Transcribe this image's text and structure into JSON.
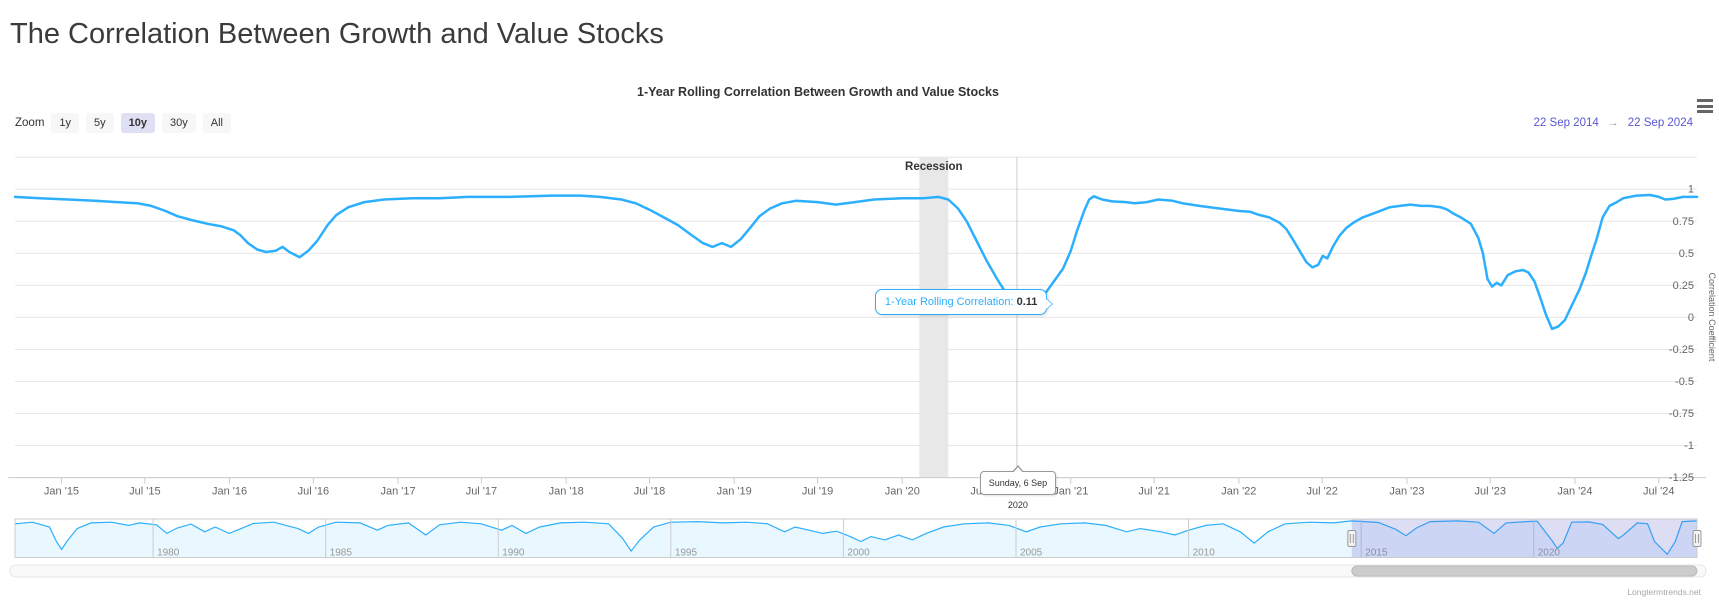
{
  "page": {
    "title": "The Correlation Between Growth and Value Stocks",
    "watermark": "Longtermtrends.net"
  },
  "chart": {
    "title": "1-Year Rolling Correlation Between Growth and Value Stocks",
    "range_selector": {
      "zoom_label": "Zoom",
      "buttons": [
        "1y",
        "5y",
        "10y",
        "30y",
        "All"
      ],
      "selected": "10y",
      "from": "22 Sep 2014",
      "arrow": "→",
      "to": "22 Sep 2024"
    },
    "y_axis": {
      "title": "Correlation Coefficient",
      "ticks": [
        "1",
        "0.75",
        "0.5",
        "0.25",
        "0",
        "-0.25",
        "-0.5",
        "-0.75",
        "-1",
        "-1.25"
      ],
      "tick_values": [
        1,
        0.75,
        0.5,
        0.25,
        0,
        -0.25,
        -0.5,
        -0.75,
        -1,
        -1.25
      ]
    },
    "x_axis": {
      "ticks": [
        {
          "label": "Jan '15",
          "date": "2015-01-01"
        },
        {
          "label": "Jul '15",
          "date": "2015-07-01"
        },
        {
          "label": "Jan '16",
          "date": "2016-01-01"
        },
        {
          "label": "Jul '16",
          "date": "2016-07-01"
        },
        {
          "label": "Jan '17",
          "date": "2017-01-01"
        },
        {
          "label": "Jul '17",
          "date": "2017-07-01"
        },
        {
          "label": "Jan '18",
          "date": "2018-01-01"
        },
        {
          "label": "Jul '18",
          "date": "2018-07-01"
        },
        {
          "label": "Jan '19",
          "date": "2019-01-01"
        },
        {
          "label": "Jul '19",
          "date": "2019-07-01"
        },
        {
          "label": "Jan '20",
          "date": "2020-01-01"
        },
        {
          "label": "Jul '20",
          "date": "2020-07-01"
        },
        {
          "label": "Jan '21",
          "date": "2021-01-01"
        },
        {
          "label": "Jul '21",
          "date": "2021-07-01"
        },
        {
          "label": "Jan '22",
          "date": "2022-01-01"
        },
        {
          "label": "Jul '22",
          "date": "2022-07-01"
        },
        {
          "label": "Jan '23",
          "date": "2023-01-01"
        },
        {
          "label": "Jul '23",
          "date": "2023-07-01"
        },
        {
          "label": "Jan '24",
          "date": "2024-01-01"
        },
        {
          "label": "Jul '24",
          "date": "2024-07-01"
        }
      ]
    },
    "plot_band": {
      "label": "Recession",
      "from": "2020-02-07",
      "to": "2020-04-10"
    },
    "tooltip": {
      "series_label": "1-Year Rolling Correlation:",
      "value": "0.11",
      "point_date": "2020-09-06",
      "point_value": 0.11,
      "date_label": "Sunday, 6 Sep 2020"
    },
    "navigator": {
      "year_labels": [
        1980,
        1985,
        1990,
        1995,
        2000,
        2005,
        2010,
        2015,
        2020
      ],
      "window_start_year": 2014.73,
      "window_end_year": 2024.73
    },
    "colors": {
      "series": "#2caffe",
      "grid": "#e6e6e6",
      "axis_line": "#ccc",
      "axis_label": "#666",
      "plot_band": "#e8e8e8",
      "selected_button_bg": "#e0e0f5",
      "button_bg": "#f7f7f7",
      "range_input_text": "#5757d2",
      "navigator_mask": "rgba(102,102,204,0.22)",
      "navigator_fill": "rgba(44,175,254,0.10)",
      "scrollbar_thumb": "#cccccc"
    }
  },
  "chart_data": {
    "type": "line",
    "title": "1-Year Rolling Correlation Between Growth and Value Stocks",
    "xlabel": "",
    "ylabel": "Correlation Coefficient",
    "ylim": [
      -1.25,
      1.25
    ],
    "x_range": [
      "2014-09-22",
      "2024-09-22"
    ],
    "grid": true,
    "legend": false,
    "series": [
      {
        "name": "1-Year Rolling Correlation",
        "points": [
          [
            "2014-09-22",
            0.94
          ],
          [
            "2014-11-15",
            0.93
          ],
          [
            "2015-01-15",
            0.92
          ],
          [
            "2015-03-15",
            0.91
          ],
          [
            "2015-05-01",
            0.9
          ],
          [
            "2015-06-15",
            0.89
          ],
          [
            "2015-07-15",
            0.87
          ],
          [
            "2015-08-15",
            0.83
          ],
          [
            "2015-09-10",
            0.79
          ],
          [
            "2015-10-10",
            0.76
          ],
          [
            "2015-11-14",
            0.73
          ],
          [
            "2015-12-15",
            0.71
          ],
          [
            "2016-01-10",
            0.68
          ],
          [
            "2016-01-25",
            0.64
          ],
          [
            "2016-02-10",
            0.58
          ],
          [
            "2016-03-01",
            0.53
          ],
          [
            "2016-03-20",
            0.51
          ],
          [
            "2016-04-10",
            0.52
          ],
          [
            "2016-04-25",
            0.55
          ],
          [
            "2016-05-10",
            0.51
          ],
          [
            "2016-06-01",
            0.47
          ],
          [
            "2016-06-20",
            0.52
          ],
          [
            "2016-07-10",
            0.6
          ],
          [
            "2016-08-01",
            0.72
          ],
          [
            "2016-08-20",
            0.8
          ],
          [
            "2016-09-15",
            0.86
          ],
          [
            "2016-10-20",
            0.9
          ],
          [
            "2016-12-01",
            0.92
          ],
          [
            "2017-02-01",
            0.93
          ],
          [
            "2017-04-01",
            0.93
          ],
          [
            "2017-06-01",
            0.94
          ],
          [
            "2017-09-01",
            0.94
          ],
          [
            "2017-12-01",
            0.95
          ],
          [
            "2018-02-01",
            0.95
          ],
          [
            "2018-03-15",
            0.94
          ],
          [
            "2018-05-01",
            0.92
          ],
          [
            "2018-06-01",
            0.89
          ],
          [
            "2018-07-01",
            0.84
          ],
          [
            "2018-08-01",
            0.78
          ],
          [
            "2018-09-01",
            0.72
          ],
          [
            "2018-10-01",
            0.64
          ],
          [
            "2018-10-25",
            0.58
          ],
          [
            "2018-11-15",
            0.55
          ],
          [
            "2018-12-05",
            0.58
          ],
          [
            "2018-12-25",
            0.55
          ],
          [
            "2019-01-15",
            0.61
          ],
          [
            "2019-02-05",
            0.7
          ],
          [
            "2019-02-25",
            0.79
          ],
          [
            "2019-03-20",
            0.85
          ],
          [
            "2019-04-15",
            0.89
          ],
          [
            "2019-05-15",
            0.91
          ],
          [
            "2019-07-01",
            0.9
          ],
          [
            "2019-08-10",
            0.88
          ],
          [
            "2019-09-20",
            0.9
          ],
          [
            "2019-11-01",
            0.92
          ],
          [
            "2020-01-01",
            0.93
          ],
          [
            "2020-02-15",
            0.93
          ],
          [
            "2020-03-20",
            0.94
          ],
          [
            "2020-04-10",
            0.92
          ],
          [
            "2020-05-01",
            0.85
          ],
          [
            "2020-05-20",
            0.75
          ],
          [
            "2020-06-10",
            0.6
          ],
          [
            "2020-07-01",
            0.45
          ],
          [
            "2020-07-25",
            0.3
          ],
          [
            "2020-08-15",
            0.18
          ],
          [
            "2020-09-06",
            0.11
          ],
          [
            "2020-09-25",
            0.08
          ],
          [
            "2020-10-15",
            0.11
          ],
          [
            "2020-11-05",
            0.18
          ],
          [
            "2020-11-25",
            0.28
          ],
          [
            "2020-12-15",
            0.38
          ],
          [
            "2021-01-01",
            0.52
          ],
          [
            "2021-01-15",
            0.68
          ],
          [
            "2021-01-30",
            0.83
          ],
          [
            "2021-02-10",
            0.92
          ],
          [
            "2021-02-20",
            0.945
          ],
          [
            "2021-03-10",
            0.92
          ],
          [
            "2021-04-01",
            0.905
          ],
          [
            "2021-05-01",
            0.9
          ],
          [
            "2021-05-20",
            0.89
          ],
          [
            "2021-06-15",
            0.9
          ],
          [
            "2021-07-10",
            0.92
          ],
          [
            "2021-08-10",
            0.91
          ],
          [
            "2021-09-01",
            0.89
          ],
          [
            "2021-10-07",
            0.87
          ],
          [
            "2021-11-20",
            0.85
          ],
          [
            "2022-01-02",
            0.83
          ],
          [
            "2022-01-25",
            0.825
          ],
          [
            "2022-02-14",
            0.8
          ],
          [
            "2022-03-08",
            0.78
          ],
          [
            "2022-03-30",
            0.74
          ],
          [
            "2022-04-14",
            0.69
          ],
          [
            "2022-04-28",
            0.61
          ],
          [
            "2022-05-13",
            0.52
          ],
          [
            "2022-05-28",
            0.43
          ],
          [
            "2022-06-10",
            0.39
          ],
          [
            "2022-06-22",
            0.41
          ],
          [
            "2022-07-02",
            0.48
          ],
          [
            "2022-07-12",
            0.46
          ],
          [
            "2022-07-24",
            0.55
          ],
          [
            "2022-08-08",
            0.64
          ],
          [
            "2022-08-23",
            0.7
          ],
          [
            "2022-09-07",
            0.74
          ],
          [
            "2022-09-27",
            0.78
          ],
          [
            "2022-10-27",
            0.82
          ],
          [
            "2022-11-25",
            0.86
          ],
          [
            "2022-12-17",
            0.87
          ],
          [
            "2023-01-08",
            0.88
          ],
          [
            "2023-02-01",
            0.87
          ],
          [
            "2023-02-21",
            0.87
          ],
          [
            "2023-03-15",
            0.86
          ],
          [
            "2023-03-30",
            0.84
          ],
          [
            "2023-04-12",
            0.81
          ],
          [
            "2023-04-28",
            0.78
          ],
          [
            "2023-05-20",
            0.73
          ],
          [
            "2023-06-05",
            0.62
          ],
          [
            "2023-06-15",
            0.5
          ],
          [
            "2023-06-25",
            0.3
          ],
          [
            "2023-07-05",
            0.24
          ],
          [
            "2023-07-15",
            0.27
          ],
          [
            "2023-07-25",
            0.25
          ],
          [
            "2023-08-08",
            0.33
          ],
          [
            "2023-08-25",
            0.36
          ],
          [
            "2023-09-10",
            0.37
          ],
          [
            "2023-09-22",
            0.35
          ],
          [
            "2023-10-05",
            0.28
          ],
          [
            "2023-10-18",
            0.15
          ],
          [
            "2023-10-30",
            0.02
          ],
          [
            "2023-11-12",
            -0.09
          ],
          [
            "2023-11-26",
            -0.07
          ],
          [
            "2023-12-10",
            -0.02
          ],
          [
            "2023-12-22",
            0.07
          ],
          [
            "2024-01-11",
            0.22
          ],
          [
            "2024-01-25",
            0.35
          ],
          [
            "2024-02-05",
            0.48
          ],
          [
            "2024-02-17",
            0.61
          ],
          [
            "2024-03-01",
            0.78
          ],
          [
            "2024-03-16",
            0.87
          ],
          [
            "2024-04-01",
            0.9
          ],
          [
            "2024-04-15",
            0.93
          ],
          [
            "2024-05-14",
            0.95
          ],
          [
            "2024-06-12",
            0.955
          ],
          [
            "2024-07-01",
            0.94
          ],
          [
            "2024-07-15",
            0.92
          ],
          [
            "2024-08-01",
            0.925
          ],
          [
            "2024-08-23",
            0.94
          ],
          [
            "2024-09-22",
            0.94
          ]
        ]
      }
    ],
    "navigator_series": {
      "name": "full-history preview",
      "x_unit": "decimal_year",
      "points": [
        [
          1976.0,
          0.85
        ],
        [
          1976.5,
          0.9
        ],
        [
          1977.0,
          0.75
        ],
        [
          1977.2,
          0.3
        ],
        [
          1977.35,
          0.05
        ],
        [
          1977.5,
          0.3
        ],
        [
          1977.8,
          0.7
        ],
        [
          1978.2,
          0.88
        ],
        [
          1978.8,
          0.9
        ],
        [
          1979.3,
          0.8
        ],
        [
          1979.6,
          0.88
        ],
        [
          1980.1,
          0.82
        ],
        [
          1980.4,
          0.55
        ],
        [
          1980.7,
          0.72
        ],
        [
          1981.1,
          0.84
        ],
        [
          1981.5,
          0.6
        ],
        [
          1981.8,
          0.75
        ],
        [
          1982.2,
          0.55
        ],
        [
          1982.5,
          0.68
        ],
        [
          1982.9,
          0.86
        ],
        [
          1983.5,
          0.9
        ],
        [
          1984.2,
          0.7
        ],
        [
          1984.5,
          0.55
        ],
        [
          1984.8,
          0.75
        ],
        [
          1985.3,
          0.9
        ],
        [
          1986.0,
          0.88
        ],
        [
          1986.5,
          0.65
        ],
        [
          1986.8,
          0.8
        ],
        [
          1987.4,
          0.88
        ],
        [
          1987.9,
          0.5
        ],
        [
          1988.3,
          0.82
        ],
        [
          1988.9,
          0.9
        ],
        [
          1989.5,
          0.85
        ],
        [
          1990.1,
          0.65
        ],
        [
          1990.4,
          0.8
        ],
        [
          1990.8,
          0.55
        ],
        [
          1991.2,
          0.75
        ],
        [
          1991.8,
          0.88
        ],
        [
          1992.5,
          0.9
        ],
        [
          1993.2,
          0.85
        ],
        [
          1993.6,
          0.4
        ],
        [
          1993.85,
          0.0
        ],
        [
          1994.1,
          0.35
        ],
        [
          1994.5,
          0.75
        ],
        [
          1995.0,
          0.9
        ],
        [
          1995.8,
          0.92
        ],
        [
          1996.5,
          0.88
        ],
        [
          1997.2,
          0.9
        ],
        [
          1997.8,
          0.85
        ],
        [
          1998.3,
          0.6
        ],
        [
          1998.6,
          0.75
        ],
        [
          1999.0,
          0.65
        ],
        [
          1999.4,
          0.55
        ],
        [
          1999.8,
          0.62
        ],
        [
          2000.2,
          0.45
        ],
        [
          2000.5,
          0.3
        ],
        [
          2000.8,
          0.45
        ],
        [
          2001.2,
          0.35
        ],
        [
          2001.6,
          0.5
        ],
        [
          2002.0,
          0.35
        ],
        [
          2002.4,
          0.55
        ],
        [
          2002.9,
          0.75
        ],
        [
          2003.5,
          0.85
        ],
        [
          2004.2,
          0.88
        ],
        [
          2004.8,
          0.8
        ],
        [
          2005.3,
          0.6
        ],
        [
          2005.7,
          0.75
        ],
        [
          2006.3,
          0.85
        ],
        [
          2007.0,
          0.88
        ],
        [
          2007.6,
          0.8
        ],
        [
          2008.2,
          0.6
        ],
        [
          2008.6,
          0.7
        ],
        [
          2009.2,
          0.6
        ],
        [
          2009.6,
          0.5
        ],
        [
          2010.0,
          0.65
        ],
        [
          2010.5,
          0.8
        ],
        [
          2011.0,
          0.85
        ],
        [
          2011.5,
          0.6
        ],
        [
          2011.9,
          0.25
        ],
        [
          2012.3,
          0.6
        ],
        [
          2012.8,
          0.85
        ],
        [
          2013.5,
          0.9
        ],
        [
          2014.2,
          0.88
        ],
        [
          2014.72,
          0.94
        ],
        [
          2015.5,
          0.89
        ],
        [
          2016.0,
          0.68
        ],
        [
          2016.3,
          0.48
        ],
        [
          2016.6,
          0.72
        ],
        [
          2017.0,
          0.92
        ],
        [
          2017.8,
          0.94
        ],
        [
          2018.4,
          0.9
        ],
        [
          2018.85,
          0.55
        ],
        [
          2019.2,
          0.88
        ],
        [
          2019.8,
          0.92
        ],
        [
          2020.1,
          0.93
        ],
        [
          2020.55,
          0.3
        ],
        [
          2020.68,
          0.08
        ],
        [
          2020.85,
          0.25
        ],
        [
          2021.1,
          0.9
        ],
        [
          2021.6,
          0.91
        ],
        [
          2022.0,
          0.83
        ],
        [
          2022.45,
          0.39
        ],
        [
          2022.6,
          0.5
        ],
        [
          2023.0,
          0.88
        ],
        [
          2023.3,
          0.85
        ],
        [
          2023.5,
          0.3
        ],
        [
          2023.87,
          -0.1
        ],
        [
          2024.1,
          0.3
        ],
        [
          2024.3,
          0.92
        ],
        [
          2024.72,
          0.94
        ]
      ]
    }
  }
}
